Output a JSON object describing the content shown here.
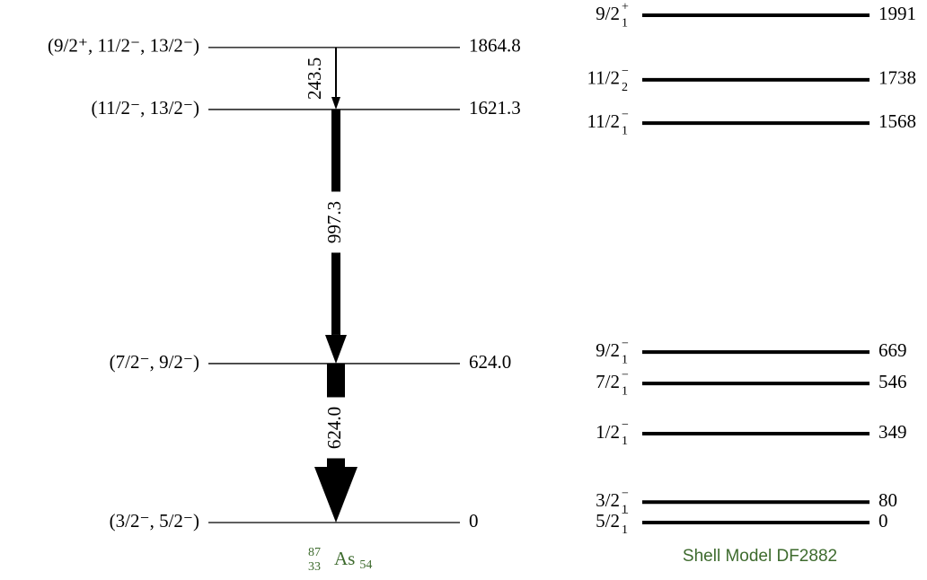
{
  "experiment": {
    "levels": [
      {
        "spin": "(9/2⁺, 11/2⁻, 13/2⁻)",
        "energy": "1864.8"
      },
      {
        "spin": "(11/2⁻, 13/2⁻)",
        "energy": "1621.3"
      },
      {
        "spin": "(7/2⁻, 9/2⁻)",
        "energy": "624.0"
      },
      {
        "spin": "(3/2⁻, 5/2⁻)",
        "energy": "0"
      }
    ],
    "transitions": [
      {
        "from": 0,
        "to": 1,
        "energy": "243.5"
      },
      {
        "from": 1,
        "to": 2,
        "energy": "997.3"
      },
      {
        "from": 2,
        "to": 3,
        "energy": "624.0"
      }
    ],
    "nucleus": {
      "A": "87",
      "Z": "33",
      "symbol": "As",
      "N": "54"
    }
  },
  "shell_model": {
    "title": "Shell Model DF2882",
    "levels": [
      {
        "j": "9/2",
        "parity": "+",
        "index": "1",
        "energy": "1991"
      },
      {
        "j": "11/2",
        "parity": "−",
        "index": "2",
        "energy": "1738"
      },
      {
        "j": "11/2",
        "parity": "−",
        "index": "1",
        "energy": "1568"
      },
      {
        "j": "9/2",
        "parity": "−",
        "index": "1",
        "energy": "669"
      },
      {
        "j": "7/2",
        "parity": "−",
        "index": "1",
        "energy": "546"
      },
      {
        "j": "1/2",
        "parity": "−",
        "index": "1",
        "energy": "349"
      },
      {
        "j": "3/2",
        "parity": "−",
        "index": "1",
        "energy": "80"
      },
      {
        "j": "5/2",
        "parity": "−",
        "index": "1",
        "energy": "0"
      }
    ]
  }
}
